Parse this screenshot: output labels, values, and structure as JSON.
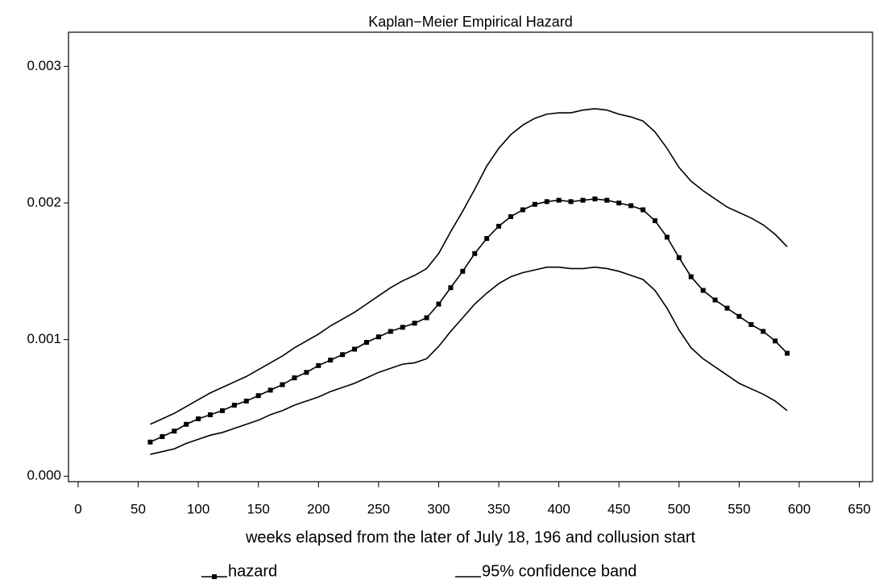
{
  "chart_data": {
    "type": "line",
    "title": "Kaplan−Meier Empirical Hazard",
    "xlabel": "weeks elapsed from the later of July 18, 196 and collusion start",
    "x": [
      60,
      70,
      80,
      90,
      100,
      110,
      120,
      130,
      140,
      150,
      160,
      170,
      180,
      190,
      200,
      210,
      220,
      230,
      240,
      250,
      260,
      270,
      280,
      290,
      300,
      310,
      320,
      330,
      340,
      350,
      360,
      370,
      380,
      390,
      400,
      410,
      420,
      430,
      440,
      450,
      460,
      470,
      480,
      490,
      500,
      510,
      520,
      530,
      540,
      550,
      560,
      570,
      580,
      590
    ],
    "series": [
      {
        "name": "hazard",
        "color": "#000000",
        "marker": true,
        "values": [
          0.00025,
          0.00029,
          0.00033,
          0.00038,
          0.00042,
          0.00045,
          0.00048,
          0.00052,
          0.00055,
          0.00059,
          0.00063,
          0.00067,
          0.00072,
          0.00076,
          0.00081,
          0.00085,
          0.00089,
          0.00093,
          0.00098,
          0.00102,
          0.00106,
          0.00109,
          0.00112,
          0.00116,
          0.00126,
          0.00138,
          0.0015,
          0.00163,
          0.00174,
          0.00183,
          0.0019,
          0.00195,
          0.00199,
          0.00201,
          0.00202,
          0.00201,
          0.00202,
          0.00203,
          0.00202,
          0.002,
          0.00198,
          0.00195,
          0.00187,
          0.00175,
          0.0016,
          0.00146,
          0.00136,
          0.00129,
          0.00123,
          0.00117,
          0.00111,
          0.00106,
          0.00099,
          0.0009
        ]
      },
      {
        "name": "95% confidence band",
        "color": "#000000",
        "marker": false,
        "values": [
          0.00038,
          0.00042,
          0.00046,
          0.00051,
          0.00056,
          0.00061,
          0.00065,
          0.00069,
          0.00073,
          0.00078,
          0.00083,
          0.00088,
          0.00094,
          0.00099,
          0.00104,
          0.0011,
          0.00115,
          0.0012,
          0.00126,
          0.00132,
          0.00138,
          0.00143,
          0.00147,
          0.00152,
          0.00163,
          0.00179,
          0.00194,
          0.0021,
          0.00227,
          0.0024,
          0.0025,
          0.00257,
          0.00262,
          0.00265,
          0.00266,
          0.00266,
          0.00268,
          0.00269,
          0.00268,
          0.00265,
          0.00263,
          0.0026,
          0.00252,
          0.0024,
          0.00226,
          0.00216,
          0.00209,
          0.00203,
          0.00197,
          0.00193,
          0.00189,
          0.00184,
          0.00177,
          0.00168
        ],
        "lower": [
          0.00016,
          0.00018,
          0.0002,
          0.00024,
          0.00027,
          0.0003,
          0.00032,
          0.00035,
          0.00038,
          0.00041,
          0.00045,
          0.00048,
          0.00052,
          0.00055,
          0.00058,
          0.00062,
          0.00065,
          0.00068,
          0.00072,
          0.00076,
          0.00079,
          0.00082,
          0.00083,
          0.00086,
          0.00095,
          0.00106,
          0.00116,
          0.00126,
          0.00134,
          0.00141,
          0.00146,
          0.00149,
          0.00151,
          0.00153,
          0.00153,
          0.00152,
          0.00152,
          0.00153,
          0.00152,
          0.0015,
          0.00147,
          0.00144,
          0.00136,
          0.00123,
          0.00107,
          0.00094,
          0.00086,
          0.0008,
          0.00074,
          0.00068,
          0.00064,
          0.0006,
          0.00055,
          0.00048
        ]
      }
    ],
    "xlim": [
      -8,
      661
    ],
    "ylim": [
      -4e-05,
      0.00325
    ],
    "xticks": [
      0,
      50,
      100,
      150,
      200,
      250,
      300,
      350,
      400,
      450,
      500,
      550,
      600,
      650
    ],
    "yticks": [
      {
        "value": 0,
        "label": "0.000"
      },
      {
        "value": 0.001,
        "label": "0.001"
      },
      {
        "value": 0.002,
        "label": "0.002"
      },
      {
        "value": 0.003,
        "label": "0.003"
      }
    ],
    "grid": false,
    "legend": "bottom"
  }
}
